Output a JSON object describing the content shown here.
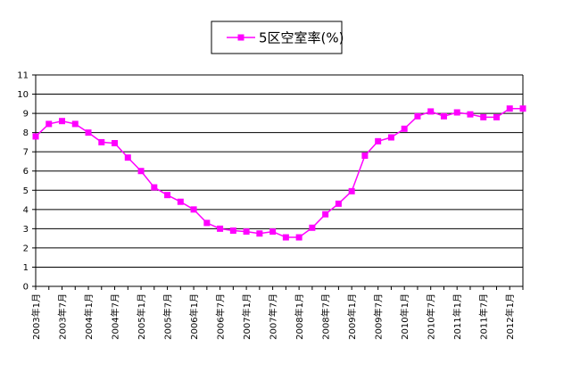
{
  "chart_data": {
    "type": "line",
    "title": "",
    "xlabel": "",
    "ylabel": "",
    "ylim": [
      0,
      11
    ],
    "y_ticks": [
      0,
      1,
      2,
      3,
      4,
      5,
      6,
      7,
      8,
      9,
      10,
      11
    ],
    "grid": "horizontal",
    "legend_position": "top-center",
    "x_tick_labels": [
      "2003年1月",
      "2003年7月",
      "2004年1月",
      "2004年7月",
      "2005年1月",
      "2005年7月",
      "2006年1月",
      "2006年7月",
      "2007年1月",
      "2007年7月",
      "2008年1月",
      "2008年7月",
      "2009年1月",
      "2009年7月",
      "2010年1月",
      "2010年7月",
      "2011年1月",
      "2011年7月",
      "2012年1月"
    ],
    "colors": {
      "series": "#ff00ff",
      "grid": "#000000",
      "axis": "#000000"
    },
    "series": [
      {
        "name": "5区空室率(%)",
        "values": [
          7.8,
          8.45,
          8.6,
          8.45,
          8.0,
          7.5,
          7.45,
          6.7,
          6.0,
          5.15,
          4.75,
          4.4,
          4.0,
          3.3,
          3.0,
          2.9,
          2.85,
          2.75,
          2.85,
          2.55,
          2.55,
          3.05,
          3.75,
          4.3,
          4.95,
          6.8,
          7.55,
          7.75,
          8.2,
          8.85,
          9.1,
          8.85,
          9.05,
          8.95,
          8.8,
          8.8,
          9.25,
          9.25
        ]
      }
    ]
  }
}
